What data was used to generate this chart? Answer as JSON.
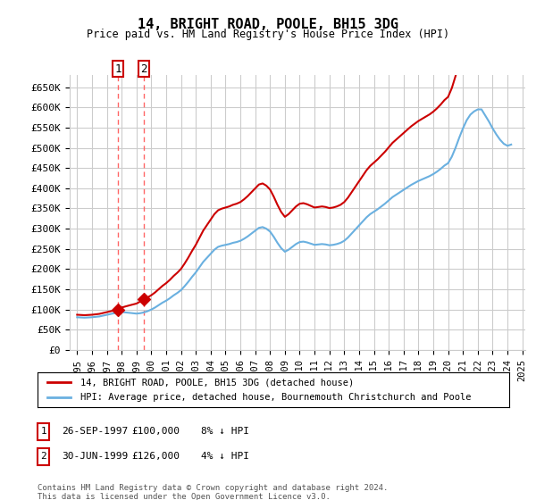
{
  "title": "14, BRIGHT ROAD, POOLE, BH15 3DG",
  "subtitle": "Price paid vs. HM Land Registry's House Price Index (HPI)",
  "ylabel_ticks": [
    "£0",
    "£50K",
    "£100K",
    "£150K",
    "£200K",
    "£250K",
    "£300K",
    "£350K",
    "£400K",
    "£450K",
    "£500K",
    "£550K",
    "£600K",
    "£650K"
  ],
  "ytick_values": [
    0,
    50000,
    100000,
    150000,
    200000,
    250000,
    300000,
    350000,
    400000,
    450000,
    500000,
    550000,
    600000,
    650000
  ],
  "ylim": [
    0,
    680000
  ],
  "sale1_date_num": 1997.74,
  "sale1_price": 100000,
  "sale2_date_num": 1999.5,
  "sale2_price": 126000,
  "sale1_label": "1",
  "sale2_label": "2",
  "legend_line1": "14, BRIGHT ROAD, POOLE, BH15 3DG (detached house)",
  "legend_line2": "HPI: Average price, detached house, Bournemouth Christchurch and Poole",
  "table_row1": [
    "1",
    "26-SEP-1997",
    "£100,000",
    "8% ↓ HPI"
  ],
  "table_row2": [
    "2",
    "30-JUN-1999",
    "£126,000",
    "4% ↓ HPI"
  ],
  "footnote": "Contains HM Land Registry data © Crown copyright and database right 2024.\nThis data is licensed under the Open Government Licence v3.0.",
  "hpi_color": "#6ab0e0",
  "price_color": "#cc0000",
  "dashed_color": "#ff6666",
  "background_color": "#ffffff",
  "grid_color": "#cccccc",
  "hpi_years": [
    1995.0,
    1995.25,
    1995.5,
    1995.75,
    1996.0,
    1996.25,
    1996.5,
    1996.75,
    1997.0,
    1997.25,
    1997.5,
    1997.75,
    1998.0,
    1998.25,
    1998.5,
    1998.75,
    1999.0,
    1999.25,
    1999.5,
    1999.75,
    2000.0,
    2000.25,
    2000.5,
    2000.75,
    2001.0,
    2001.25,
    2001.5,
    2001.75,
    2002.0,
    2002.25,
    2002.5,
    2002.75,
    2003.0,
    2003.25,
    2003.5,
    2003.75,
    2004.0,
    2004.25,
    2004.5,
    2004.75,
    2005.0,
    2005.25,
    2005.5,
    2005.75,
    2006.0,
    2006.25,
    2006.5,
    2006.75,
    2007.0,
    2007.25,
    2007.5,
    2007.75,
    2008.0,
    2008.25,
    2008.5,
    2008.75,
    2009.0,
    2009.25,
    2009.5,
    2009.75,
    2010.0,
    2010.25,
    2010.5,
    2010.75,
    2011.0,
    2011.25,
    2011.5,
    2011.75,
    2012.0,
    2012.25,
    2012.5,
    2012.75,
    2013.0,
    2013.25,
    2013.5,
    2013.75,
    2014.0,
    2014.25,
    2014.5,
    2014.75,
    2015.0,
    2015.25,
    2015.5,
    2015.75,
    2016.0,
    2016.25,
    2016.5,
    2016.75,
    2017.0,
    2017.25,
    2017.5,
    2017.75,
    2018.0,
    2018.25,
    2018.5,
    2018.75,
    2019.0,
    2019.25,
    2019.5,
    2019.75,
    2020.0,
    2020.25,
    2020.5,
    2020.75,
    2021.0,
    2021.25,
    2021.5,
    2021.75,
    2022.0,
    2022.25,
    2022.5,
    2022.75,
    2023.0,
    2023.25,
    2023.5,
    2023.75,
    2024.0,
    2024.25
  ],
  "hpi_values": [
    81000,
    80500,
    80000,
    80500,
    81000,
    82000,
    83000,
    85000,
    87000,
    89000,
    91000,
    93000,
    94000,
    93000,
    92000,
    91000,
    90000,
    91000,
    93000,
    96000,
    100000,
    105000,
    111000,
    117000,
    122000,
    128000,
    135000,
    141000,
    148000,
    158000,
    169000,
    181000,
    192000,
    205000,
    218000,
    228000,
    238000,
    248000,
    255000,
    258000,
    260000,
    262000,
    265000,
    267000,
    270000,
    275000,
    281000,
    288000,
    295000,
    302000,
    304000,
    300000,
    293000,
    280000,
    265000,
    252000,
    243000,
    248000,
    255000,
    262000,
    267000,
    268000,
    266000,
    263000,
    260000,
    261000,
    262000,
    261000,
    259000,
    260000,
    262000,
    265000,
    270000,
    278000,
    288000,
    298000,
    308000,
    318000,
    328000,
    336000,
    342000,
    348000,
    355000,
    362000,
    370000,
    378000,
    384000,
    390000,
    396000,
    402000,
    408000,
    413000,
    418000,
    422000,
    426000,
    430000,
    435000,
    441000,
    448000,
    456000,
    462000,
    478000,
    500000,
    525000,
    548000,
    568000,
    582000,
    590000,
    595000,
    595000,
    580000,
    565000,
    548000,
    533000,
    520000,
    510000,
    505000,
    508000
  ],
  "price_line_years": [
    1997.74,
    1999.5
  ],
  "price_line_values": [
    100000,
    126000
  ],
  "xlim_left": 1994.5,
  "xlim_right": 2025.2,
  "xtick_years": [
    1995,
    1996,
    1997,
    1998,
    1999,
    2000,
    2001,
    2002,
    2003,
    2004,
    2005,
    2006,
    2007,
    2008,
    2009,
    2010,
    2011,
    2012,
    2013,
    2014,
    2015,
    2016,
    2017,
    2018,
    2019,
    2020,
    2021,
    2022,
    2023,
    2024,
    2025
  ]
}
